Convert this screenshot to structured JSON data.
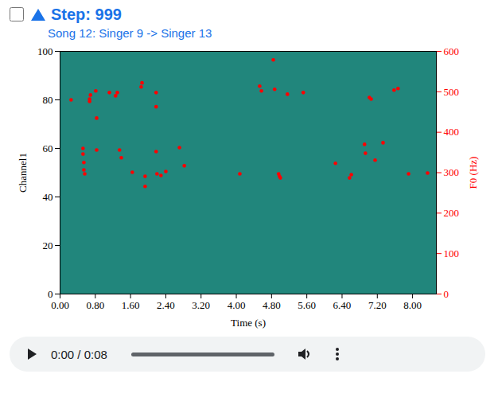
{
  "header": {
    "title": "Step: 999",
    "subtitle": "Song 12: Singer 9 -> Singer 13"
  },
  "chart_data": {
    "type": "scatter",
    "xlabel": "Time (s)",
    "ylabel": "Channel1",
    "y2label": "F0 (Hz)",
    "xlim": [
      0,
      8.54
    ],
    "xticks": [
      {
        "value": 0,
        "label": "0.00"
      },
      {
        "value": 0.8,
        "label": "0.80"
      },
      {
        "value": 1.6,
        "label": "1.60"
      },
      {
        "value": 2.4,
        "label": "2.40"
      },
      {
        "value": 3.2,
        "label": "3.20"
      },
      {
        "value": 4,
        "label": "4.00"
      },
      {
        "value": 4.8,
        "label": "4.80"
      },
      {
        "value": 5.6,
        "label": "5.60"
      },
      {
        "value": 6.4,
        "label": "6.40"
      },
      {
        "value": 7.2,
        "label": "7.20"
      },
      {
        "value": 8,
        "label": "8.00"
      }
    ],
    "ylim": [
      0,
      100
    ],
    "yticks": [
      0,
      20,
      40,
      60,
      80,
      100
    ],
    "y2lim": [
      0,
      600
    ],
    "y2ticks": [
      0,
      100,
      200,
      300,
      400,
      500,
      600
    ],
    "series": [
      {
        "axis": "y2",
        "color": "red",
        "marker": "circle",
        "x": [
          0.25,
          0.52,
          0.52,
          0.54,
          0.54,
          0.56,
          0.67,
          0.69,
          0.67,
          0.81,
          0.83,
          0.83,
          1.12,
          1.26,
          1.3,
          1.35,
          1.39,
          1.64,
          1.84,
          1.86,
          1.93,
          1.93,
          2.18,
          2.18,
          2.18,
          2.2,
          2.29,
          2.4,
          2.71,
          2.82,
          4.08,
          4.53,
          4.57,
          4.84,
          4.87,
          4.96,
          5.0,
          4.98,
          5.16,
          5.52,
          6.25,
          6.57,
          6.61,
          7.02,
          7.06,
          6.93,
          6.91,
          7.15,
          7.33,
          7.58,
          7.67,
          7.91,
          8.34
        ],
        "values": [
          480,
          360,
          346,
          325,
          307,
          297,
          482,
          492,
          476,
          502,
          356,
          435,
          498,
          490,
          498,
          356,
          337,
          301,
          512,
          522,
          291,
          266,
          498,
          463,
          352,
          297,
          293,
          303,
          362,
          317,
          297,
          514,
          502,
          579,
          506,
          297,
          287,
          291,
          494,
          498,
          323,
          287,
          295,
          486,
          482,
          348,
          370,
          331,
          374,
          504,
          508,
          297,
          299
        ]
      }
    ]
  },
  "player": {
    "time": "0:00 / 0:08"
  }
}
